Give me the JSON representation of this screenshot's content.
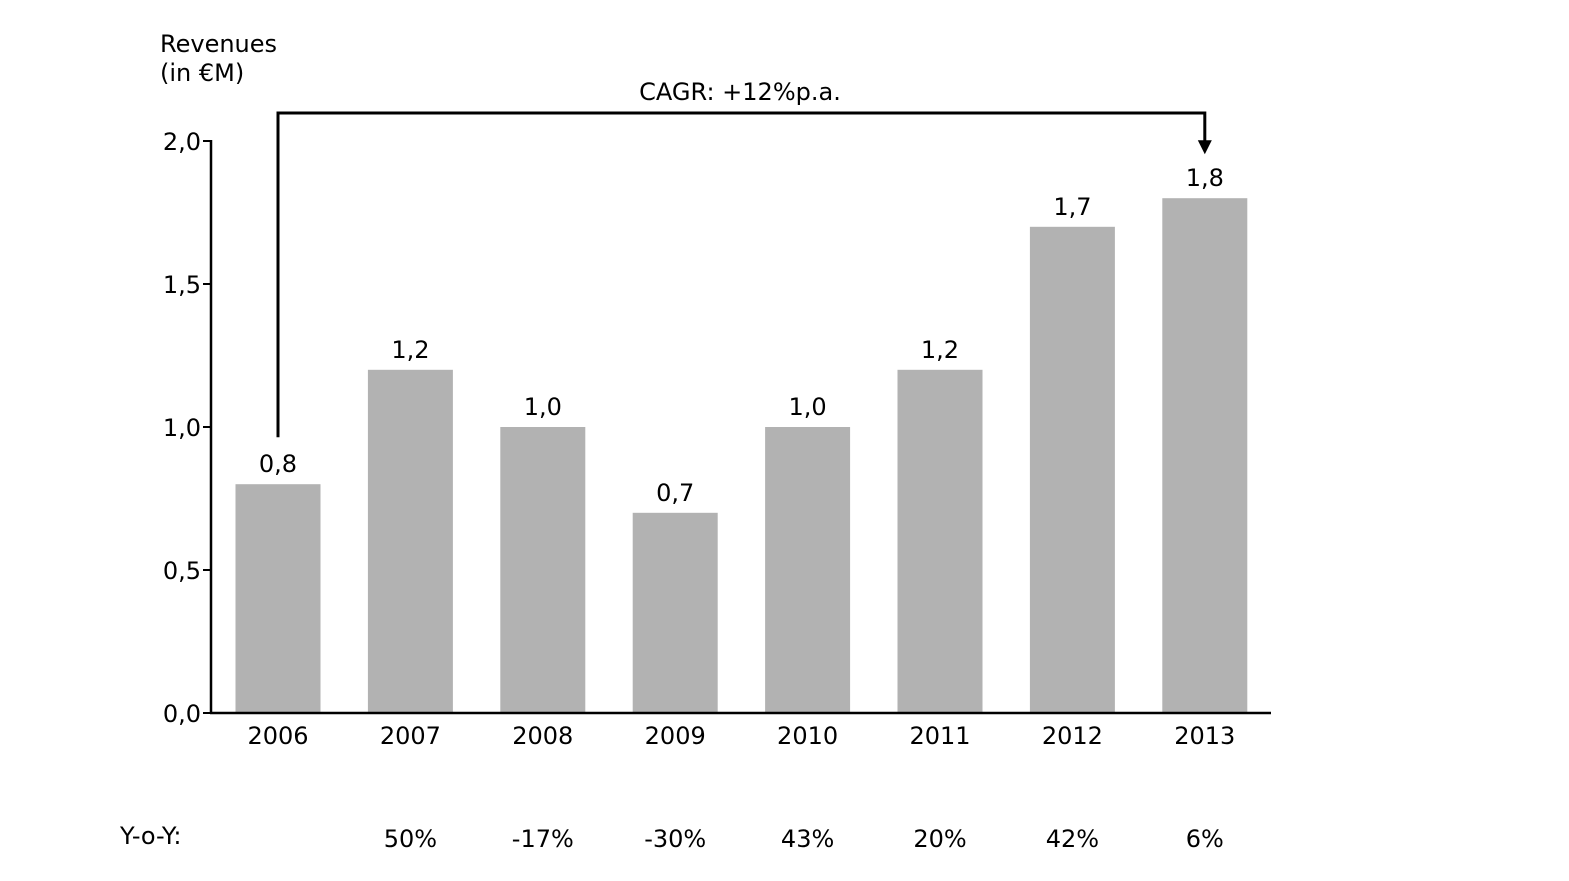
{
  "chart_data": {
    "type": "bar",
    "ylabel_lines": [
      "Revenues",
      "(in €M)"
    ],
    "categories": [
      "2006",
      "2007",
      "2008",
      "2009",
      "2010",
      "2011",
      "2012",
      "2013"
    ],
    "values": [
      0.8,
      1.2,
      1.0,
      0.7,
      1.0,
      1.2,
      1.7,
      1.8
    ],
    "data_labels": [
      "0,8",
      "1,2",
      "1,0",
      "0,7",
      "1,0",
      "1,2",
      "1,7",
      "1,8"
    ],
    "ylim": [
      0,
      2.0
    ],
    "yticks": [
      0,
      0.5,
      1.0,
      1.5,
      2.0
    ],
    "ytick_labels": [
      "0,0",
      "0,5",
      "1,0",
      "1,5",
      "2,0"
    ],
    "grid": false,
    "bar_color": "#b2b2b2",
    "annotation": {
      "text": "CAGR: +12%p.a.",
      "from_category": "2006",
      "to_category": "2013"
    },
    "yoy": {
      "title": "Y-o-Y:",
      "values": [
        "",
        "50%",
        "-17%",
        "-30%",
        "43%",
        "20%",
        "42%",
        "6%"
      ]
    }
  }
}
